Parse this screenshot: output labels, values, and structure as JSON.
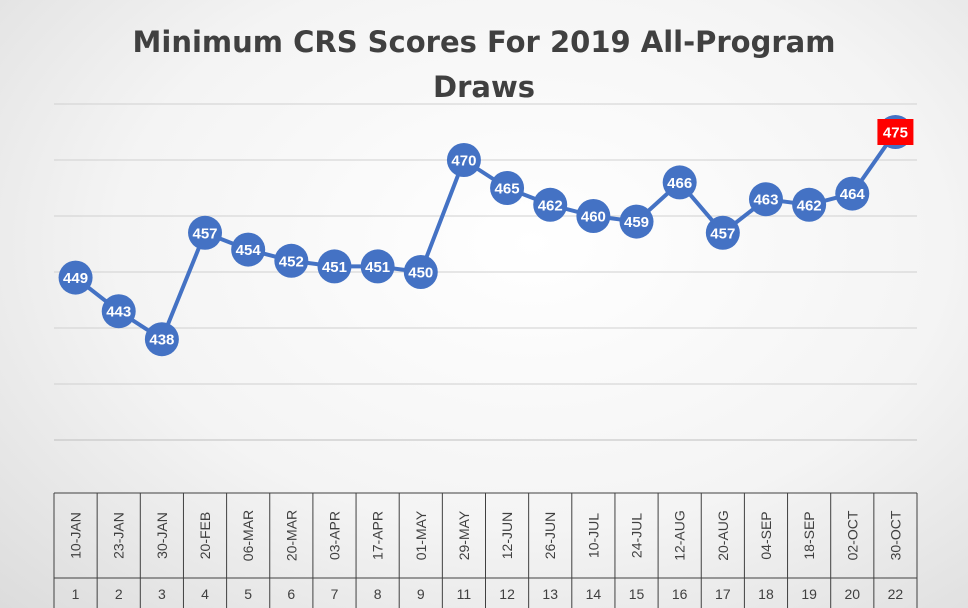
{
  "chart_data": {
    "type": "line",
    "title_line1": "Minimum CRS Scores For 2019 All-Program",
    "title_line2": "Draws",
    "categories": [
      {
        "date": "10-JAN",
        "num": "1"
      },
      {
        "date": "23-JAN",
        "num": "2"
      },
      {
        "date": "30-JAN",
        "num": "3"
      },
      {
        "date": "20-FEB",
        "num": "4"
      },
      {
        "date": "06-MAR",
        "num": "5"
      },
      {
        "date": "20-MAR",
        "num": "6"
      },
      {
        "date": "03-APR",
        "num": "7"
      },
      {
        "date": "17-APR",
        "num": "8"
      },
      {
        "date": "01-MAY",
        "num": "9"
      },
      {
        "date": "29-MAY",
        "num": "11"
      },
      {
        "date": "12-JUN",
        "num": "12"
      },
      {
        "date": "26-JUN",
        "num": "13"
      },
      {
        "date": "10-JUL",
        "num": "14"
      },
      {
        "date": "24-JUL",
        "num": "15"
      },
      {
        "date": "12-AUG",
        "num": "16"
      },
      {
        "date": "20-AUG",
        "num": "17"
      },
      {
        "date": "04-SEP",
        "num": "18"
      },
      {
        "date": "18-SEP",
        "num": "19"
      },
      {
        "date": "02-OCT",
        "num": "20"
      },
      {
        "date": "30-OCT",
        "num": "22"
      }
    ],
    "series": [
      {
        "values": [
          449,
          443,
          438,
          457,
          454,
          452,
          451,
          451,
          450,
          470,
          465,
          462,
          460,
          459,
          466,
          457,
          463,
          462,
          464,
          475
        ],
        "color": "#4472C4",
        "highlight_index": 19,
        "highlight_color": "#FF0000"
      }
    ],
    "ylim": [
      420,
      480
    ],
    "y_gridlines": [
      430,
      440,
      450,
      460,
      470,
      480
    ],
    "grid": true,
    "legend": false
  }
}
